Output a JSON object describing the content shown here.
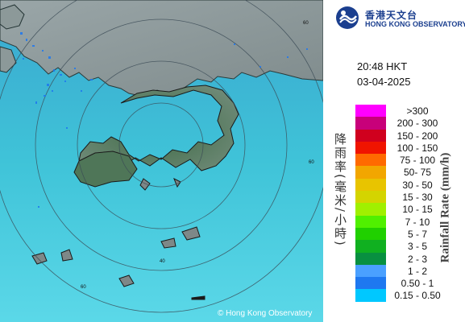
{
  "map": {
    "copyright": "© Hong Kong Observatory",
    "ring_labels": [
      "60",
      "60",
      "40",
      "60"
    ]
  },
  "logo": {
    "zh": "香港天文台",
    "en": "HONG KONG OBSERVATORY"
  },
  "timestamp": {
    "time": "20:48 HKT",
    "date": "03-04-2025"
  },
  "legend": {
    "label_zh": "降雨率(毫米/小時)",
    "label_en": "Rainfall Rate (mm/h)",
    "items": [
      {
        "label": ">300",
        "color": "#ff00ff"
      },
      {
        "label": "200 - 300",
        "color": "#c8007a"
      },
      {
        "label": "150 - 200",
        "color": "#d0001e"
      },
      {
        "label": "100 - 150",
        "color": "#f01400"
      },
      {
        "label": "75 - 100",
        "color": "#ff6a00"
      },
      {
        "label": "50- 75",
        "color": "#f2a600"
      },
      {
        "label": "30 - 50",
        "color": "#e8c400"
      },
      {
        "label": "15 - 30",
        "color": "#d4d400"
      },
      {
        "label": "10 - 15",
        "color": "#a0f000"
      },
      {
        "label": "7 - 10",
        "color": "#50f000"
      },
      {
        "label": "5 - 7",
        "color": "#20d000"
      },
      {
        "label": "3 - 5",
        "color": "#10b020"
      },
      {
        "label": "2 - 3",
        "color": "#089040"
      },
      {
        "label": "1 - 2",
        "color": "#4aa0ff"
      },
      {
        "label": "0.50 - 1",
        "color": "#1e78f0"
      },
      {
        "label": "0.15 - 0.50",
        "color": "#00c8ff"
      }
    ]
  }
}
